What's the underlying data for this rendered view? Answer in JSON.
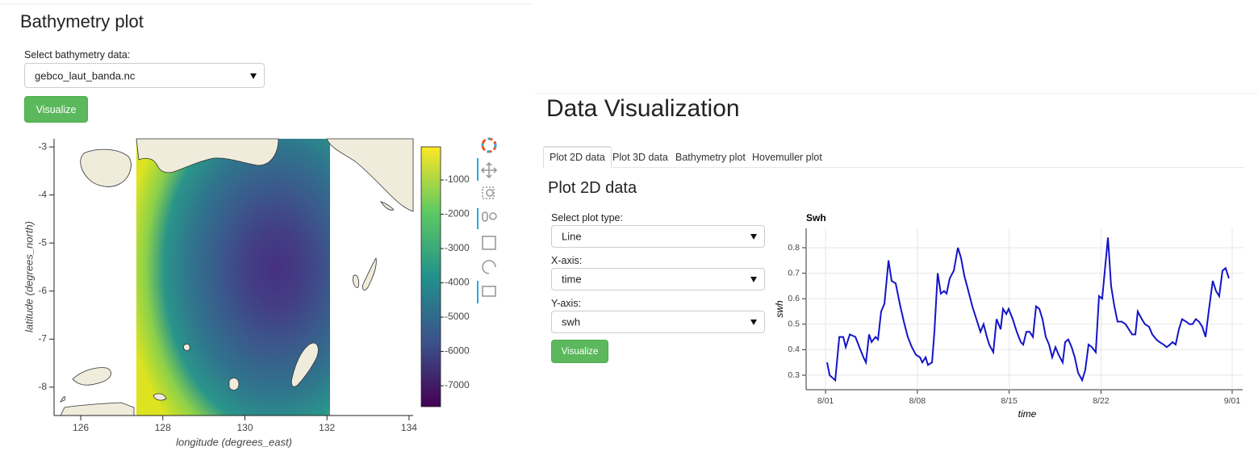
{
  "left": {
    "title": "Bathymetry plot",
    "select_label": "Select bathymetry data:",
    "select_value": "gebco_laut_banda.nc",
    "button": "Visualize",
    "map": {
      "xlabel": "longitude (degrees_east)",
      "ylabel": "latitude (degrees_north)",
      "xlim": [
        125.35,
        134.1
      ],
      "xticks": [
        126,
        128,
        130,
        132,
        134
      ],
      "ylim": [
        -8.59,
        -2.83
      ],
      "yticks": [
        -3,
        -4,
        -5,
        -6,
        -7,
        -8
      ],
      "colorbar": {
        "lim": [
          -7610,
          -35
        ],
        "ticks": [
          -1000,
          -2000,
          -3000,
          -4000,
          -5000,
          -6000,
          -7000
        ]
      }
    }
  },
  "right": {
    "title": "Data Visualization",
    "tabs": [
      "Plot 2D data",
      "Plot 3D data",
      "Bathymetry plot",
      "Hovemuller plot"
    ],
    "subtitle": "Plot 2D data",
    "fields": [
      {
        "label": "Select plot type:",
        "value": "Line"
      },
      {
        "label": "X-axis:",
        "value": "time"
      },
      {
        "label": "Y-axis:",
        "value": "swh"
      }
    ],
    "button": "Visualize"
  },
  "chart_data": {
    "type": "line",
    "title": "Swh",
    "xlabel": "time",
    "ylabel": "swh",
    "color": "#1414c8",
    "grid": true,
    "xlim": [
      -1.48,
      31.8
    ],
    "xticks": [
      {
        "value": 0,
        "label": "8/01"
      },
      {
        "value": 7,
        "label": "8/08"
      },
      {
        "value": 14,
        "label": "8/15"
      },
      {
        "value": 21,
        "label": "8/22"
      },
      {
        "value": 31,
        "label": "9/01"
      }
    ],
    "ylim": [
      0.243,
      0.876
    ],
    "yticks": [
      0.3,
      0.4,
      0.5,
      0.6,
      0.7,
      0.8
    ],
    "x": [
      0.12,
      0.31,
      0.74,
      1.05,
      1.35,
      1.54,
      1.85,
      2.28,
      2.58,
      2.89,
      3.08,
      3.32,
      3.51,
      3.81,
      4.0,
      4.24,
      4.49,
      4.8,
      5.04,
      5.35,
      5.66,
      5.97,
      6.27,
      6.58,
      6.89,
      7.2,
      7.38,
      7.63,
      7.81,
      8.12,
      8.3,
      8.55,
      8.79,
      9.04,
      9.23,
      9.47,
      9.78,
      10.09,
      10.33,
      10.58,
      10.89,
      11.19,
      11.5,
      11.81,
      12.05,
      12.3,
      12.48,
      12.79,
      13.04,
      13.35,
      13.53,
      13.78,
      13.96,
      14.27,
      14.58,
      14.88,
      15.07,
      15.31,
      15.56,
      15.81,
      16.05,
      16.3,
      16.54,
      16.79,
      17.04,
      17.28,
      17.53,
      17.77,
      18.08,
      18.27,
      18.51,
      18.76,
      19.0,
      19.25,
      19.56,
      19.8,
      20.05,
      20.3,
      20.6,
      20.85,
      21.09,
      21.53,
      21.77,
      22.02,
      22.26,
      22.57,
      22.88,
      23.12,
      23.37,
      23.62,
      23.8,
      24.11,
      24.35,
      24.66,
      24.91,
      25.22,
      25.46,
      25.77,
      26.01,
      26.26,
      26.45,
      26.69,
      26.94,
      27.18,
      27.49,
      27.74,
      27.98,
      28.23,
      28.47,
      28.72,
      28.97,
      29.21,
      29.52,
      29.77,
      30.01,
      30.26,
      30.5,
      30.75
    ],
    "values": [
      0.35,
      0.3,
      0.28,
      0.45,
      0.45,
      0.41,
      0.46,
      0.45,
      0.41,
      0.37,
      0.35,
      0.46,
      0.43,
      0.45,
      0.44,
      0.55,
      0.58,
      0.75,
      0.67,
      0.66,
      0.58,
      0.51,
      0.45,
      0.41,
      0.38,
      0.37,
      0.35,
      0.37,
      0.34,
      0.35,
      0.47,
      0.7,
      0.62,
      0.63,
      0.62,
      0.68,
      0.71,
      0.8,
      0.76,
      0.69,
      0.63,
      0.57,
      0.52,
      0.47,
      0.5,
      0.45,
      0.42,
      0.39,
      0.52,
      0.48,
      0.56,
      0.54,
      0.56,
      0.52,
      0.47,
      0.43,
      0.42,
      0.47,
      0.47,
      0.45,
      0.57,
      0.56,
      0.52,
      0.45,
      0.42,
      0.37,
      0.41,
      0.38,
      0.35,
      0.43,
      0.44,
      0.41,
      0.37,
      0.31,
      0.28,
      0.32,
      0.42,
      0.41,
      0.39,
      0.61,
      0.6,
      0.84,
      0.65,
      0.57,
      0.51,
      0.51,
      0.5,
      0.48,
      0.46,
      0.46,
      0.55,
      0.52,
      0.5,
      0.49,
      0.46,
      0.44,
      0.43,
      0.42,
      0.41,
      0.42,
      0.43,
      0.42,
      0.48,
      0.52,
      0.51,
      0.5,
      0.5,
      0.52,
      0.51,
      0.49,
      0.45,
      0.55,
      0.67,
      0.63,
      0.61,
      0.71,
      0.72,
      0.68
    ]
  }
}
